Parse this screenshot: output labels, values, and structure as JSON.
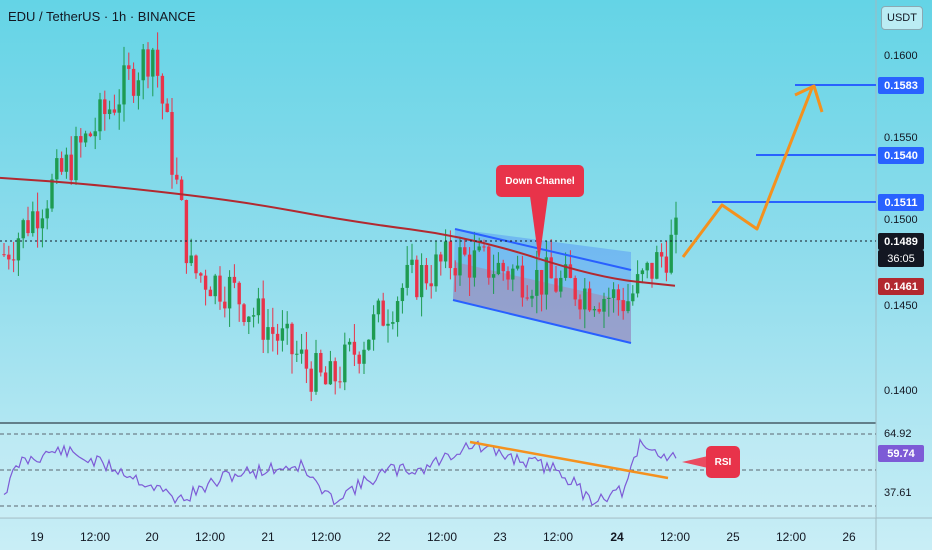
{
  "header": {
    "symbol": "EDU / TetherUS · 1h · BINANCE",
    "currency_button": "USDT"
  },
  "colors": {
    "up": "#1e9b51",
    "down": "#e8334a",
    "ma": "#b22930",
    "channel": "#2960ff",
    "target": "#2962ff",
    "arrow": "#f4911e",
    "rsi": "#7d5bd6"
  },
  "price_axis": {
    "labels": [
      "0.1600",
      "0.1550",
      "0.1500",
      "0.1450",
      "0.1400"
    ]
  },
  "badges": {
    "target_high": "0.1583",
    "target_mid": "0.1540",
    "target_low": "0.1511",
    "current_price": "0.1489",
    "countdown": "36:05",
    "ma_value": "0.1461"
  },
  "rsi_axis": {
    "upper": "64.92",
    "value": "59.74",
    "lower": "37.61"
  },
  "time_axis": {
    "labels": [
      "19",
      "12:00",
      "20",
      "12:00",
      "21",
      "12:00",
      "22",
      "12:00",
      "23",
      "12:00",
      "24",
      "12:00",
      "25",
      "12:00",
      "26"
    ]
  },
  "annotations": {
    "down_channel": "Down Channel",
    "rsi": "RSI"
  },
  "chart_data": {
    "type": "candlestick",
    "symbol": "EDU / TetherUS",
    "timeframe": "1h",
    "ylim": [
      0.138,
      0.163
    ],
    "x_range": [
      "19",
      "26"
    ],
    "current_price": 0.1489,
    "moving_average_last": 0.1461,
    "targets": [
      0.1511,
      0.154,
      0.1583
    ],
    "key_points": [
      {
        "x": "19 00:00",
        "y": 0.148
      },
      {
        "x": "20 00:00",
        "y": 0.1605
      },
      {
        "x": "20 12:00",
        "y": 0.147
      },
      {
        "x": "21 00:00",
        "y": 0.146
      },
      {
        "x": "21 12:00",
        "y": 0.14
      },
      {
        "x": "22 00:00",
        "y": 0.1462
      },
      {
        "x": "23 00:00",
        "y": 0.147
      },
      {
        "x": "24 00:00",
        "y": 0.145
      },
      {
        "x": "24 12:00",
        "y": 0.1489
      }
    ],
    "ma_series": [
      {
        "x": "19 00:00",
        "y": 0.1526
      },
      {
        "x": "20 00:00",
        "y": 0.152
      },
      {
        "x": "21 00:00",
        "y": 0.1507
      },
      {
        "x": "22 00:00",
        "y": 0.1498
      },
      {
        "x": "23 00:00",
        "y": 0.1487
      },
      {
        "x": "24 00:00",
        "y": 0.1466
      },
      {
        "x": "24 12:00",
        "y": 0.1461
      }
    ],
    "rsi": {
      "levels": [
        64.92,
        37.61
      ],
      "current": 59.74
    }
  }
}
